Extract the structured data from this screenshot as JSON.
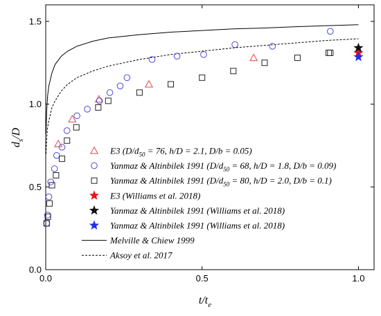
{
  "chart_data": {
    "type": "scatter",
    "xlabel": "t/t",
    "xlabel_sub": "e",
    "ylabel": "d",
    "ylabel_sub": "s",
    "ylabel_suffix": "/D",
    "xlim": [
      0.0,
      1.05
    ],
    "ylim": [
      0.0,
      1.6
    ],
    "x_ticks": [
      0.0,
      0.5,
      1.0
    ],
    "x_tick_labels": [
      "0.0",
      "0.5",
      "1.0"
    ],
    "y_ticks": [
      0.0,
      0.5,
      1.0,
      1.5
    ],
    "y_tick_labels": [
      "0.0",
      "0.5",
      "1.0",
      "1.5"
    ],
    "grid": false,
    "legend_position": "lower-left",
    "series": [
      {
        "name": "E3 (D/d50 = 76, h/D = 2.1, D/b = 0.05)",
        "legend": {
          "pre": "E3 (D/d",
          "sub": "50",
          "post": " = 76, h/D = 2.1, D/b = 0.05)"
        },
        "marker": "triangle",
        "color": "#e0474c",
        "x": [
          0.04,
          0.085,
          0.17,
          0.33,
          0.665,
          1.0
        ],
        "y": [
          0.76,
          0.91,
          1.03,
          1.12,
          1.28,
          1.33
        ]
      },
      {
        "name": "Yanmaz & Altinbilek 1991 (D/d50 = 68, h/D = 1.8, D/b = 0.09)",
        "legend": {
          "pre": "Yanmaz & Altinbilek 1991 (D/d",
          "sub": "50",
          "post": " = 68, h/D = 1.8, D/b = 0.09)"
        },
        "marker": "circle",
        "color": "#4a4ad6",
        "x": [
          0.003,
          0.006,
          0.01,
          0.016,
          0.028,
          0.035,
          0.052,
          0.068,
          0.1,
          0.133,
          0.172,
          0.205,
          0.238,
          0.26,
          0.34,
          0.42,
          0.505,
          0.605,
          0.725,
          0.91
        ],
        "y": [
          0.28,
          0.33,
          0.44,
          0.53,
          0.61,
          0.69,
          0.74,
          0.84,
          0.93,
          0.97,
          1.02,
          1.07,
          1.11,
          1.16,
          1.27,
          1.29,
          1.3,
          1.36,
          1.35,
          1.44
        ]
      },
      {
        "name": "Yanmaz & Altinbilek 1991 (D/d50 = 80, h/D = 2.0, D/b = 0.1)",
        "legend": {
          "pre": "Yanmaz & Altinbilek 1991 (D/d",
          "sub": "50",
          "post": " = 80, h/D = 2.0, D/b = 0.1)"
        },
        "marker": "square",
        "color": "#222222",
        "x": [
          0.003,
          0.007,
          0.012,
          0.02,
          0.033,
          0.052,
          0.068,
          0.098,
          0.168,
          0.2,
          0.3,
          0.4,
          0.5,
          0.6,
          0.7,
          0.805,
          0.905,
          0.91
        ],
        "y": [
          0.28,
          0.32,
          0.4,
          0.51,
          0.57,
          0.67,
          0.78,
          0.86,
          0.98,
          1.02,
          1.07,
          1.12,
          1.16,
          1.2,
          1.25,
          1.28,
          1.31,
          1.31
        ]
      },
      {
        "name": "E3 (Williams et al. 2018)",
        "legend": {
          "pre": "E3 (Williams et al. 2018)",
          "sub": "",
          "post": ""
        },
        "marker": "star",
        "color": "#e8151b",
        "x": [
          1.0
        ],
        "y": [
          1.31
        ]
      },
      {
        "name": "Yanmaz & Altinbilek 1991 (Williams et al. 2018)",
        "legend": {
          "pre": "Yanmaz & Altinbilek 1991 (Williams et al. 2018)",
          "sub": "",
          "post": ""
        },
        "marker": "star",
        "color": "#111111",
        "x": [
          1.0
        ],
        "y": [
          1.34
        ]
      },
      {
        "name": "Yanmaz & Altinbilek 1991 (Williams et al. 2018)",
        "legend": {
          "pre": "Yanmaz & Altinbilek 1991 (Williams et al. 2018)",
          "sub": "",
          "post": ""
        },
        "marker": "star",
        "color": "#1f2fe6",
        "x": [
          1.0
        ],
        "y": [
          1.285
        ]
      },
      {
        "name": "Melville & Chiew 1999",
        "legend": {
          "pre": "Melville & Chiew 1999",
          "sub": "",
          "post": ""
        },
        "marker": "line-solid",
        "color": "#000000",
        "x": [
          0.001,
          0.003,
          0.006,
          0.01,
          0.02,
          0.03,
          0.05,
          0.07,
          0.1,
          0.15,
          0.2,
          0.3,
          0.4,
          0.5,
          0.6,
          0.7,
          0.8,
          0.9,
          1.0
        ],
        "y": [
          0.82,
          0.96,
          1.05,
          1.11,
          1.19,
          1.24,
          1.29,
          1.32,
          1.35,
          1.38,
          1.4,
          1.42,
          1.435,
          1.445,
          1.455,
          1.46,
          1.468,
          1.474,
          1.48
        ]
      },
      {
        "name": "Aksoy et al. 2017",
        "legend": {
          "pre": "Aksoy et al. 2017",
          "sub": "",
          "post": ""
        },
        "marker": "line-dashed",
        "color": "#000000",
        "x": [
          0.001,
          0.003,
          0.006,
          0.01,
          0.02,
          0.03,
          0.05,
          0.07,
          0.1,
          0.15,
          0.2,
          0.3,
          0.4,
          0.5,
          0.6,
          0.7,
          0.8,
          0.9,
          1.0
        ],
        "y": [
          0.7,
          0.79,
          0.86,
          0.9,
          0.98,
          1.02,
          1.08,
          1.12,
          1.16,
          1.2,
          1.23,
          1.27,
          1.3,
          1.32,
          1.34,
          1.355,
          1.37,
          1.385,
          1.395
        ]
      }
    ]
  }
}
